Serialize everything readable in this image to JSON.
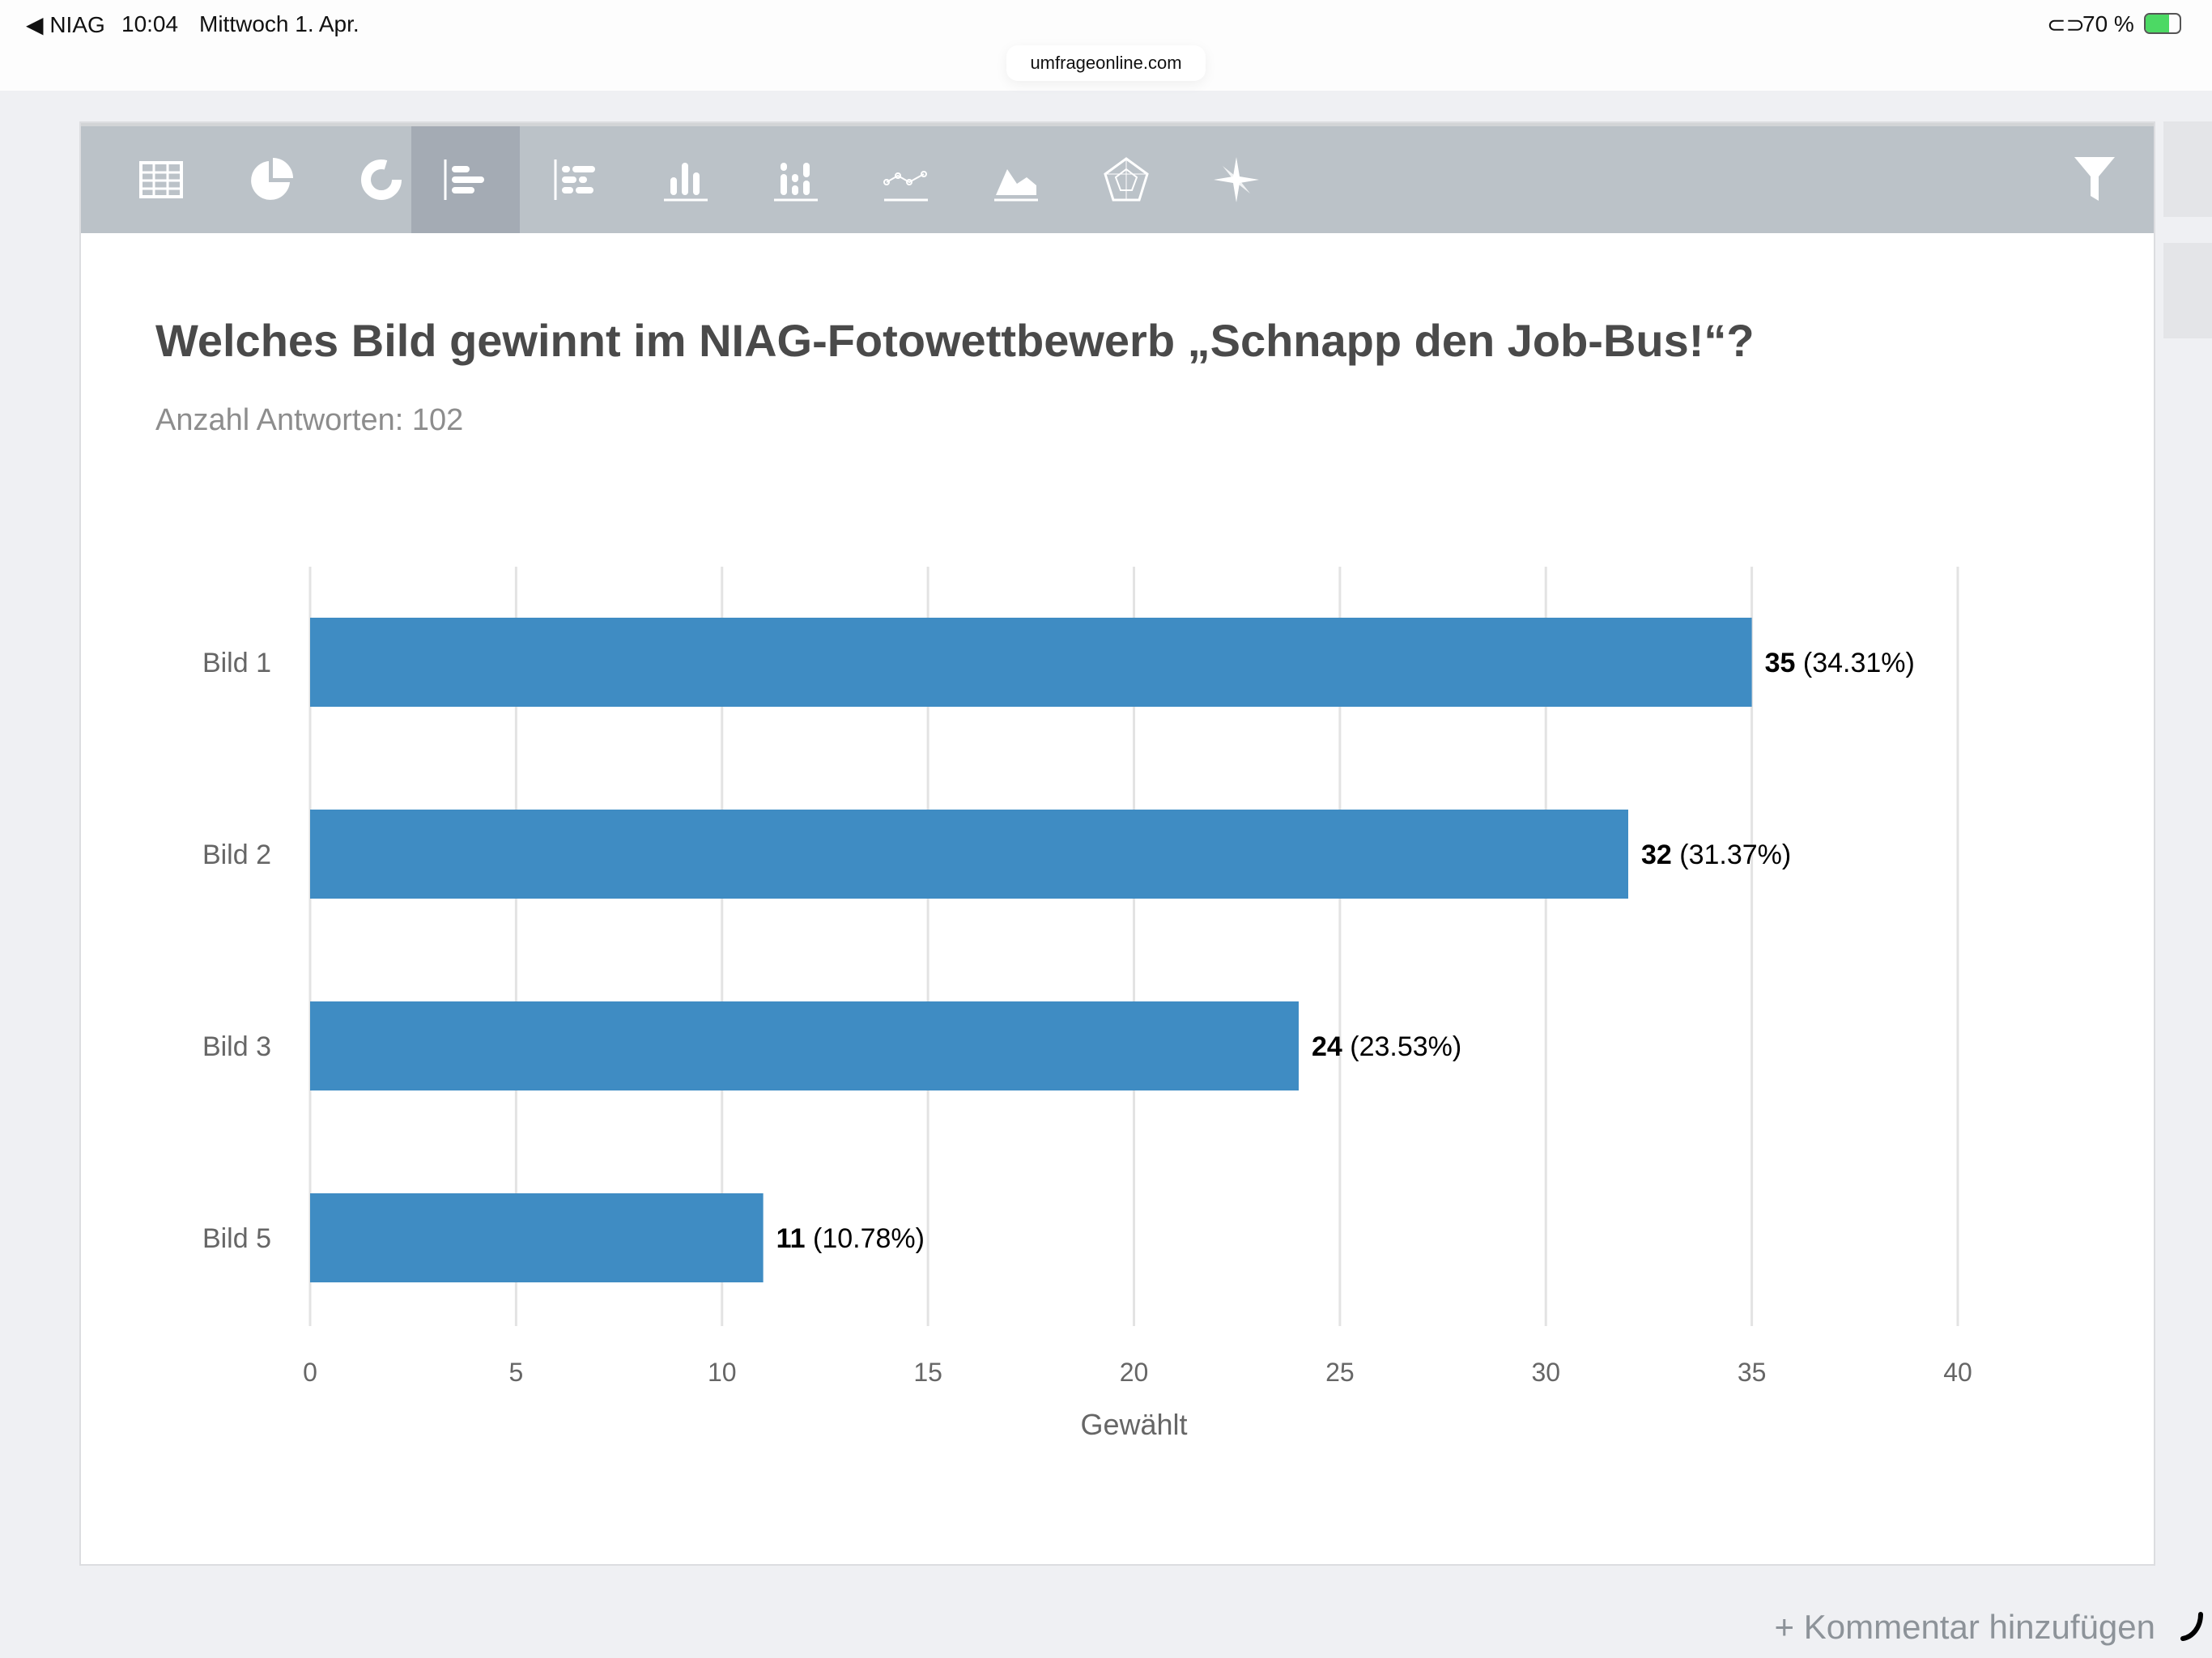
{
  "status_bar": {
    "back_app": "NIAG",
    "time": "10:04",
    "date": "Mittwoch 1. Apr.",
    "battery": "70 %"
  },
  "browser": {
    "url": "umfrageonline.com"
  },
  "toolbar": {
    "icons": [
      "table-icon",
      "pie-chart-icon",
      "donut-chart-icon",
      "horizontal-bar-icon",
      "stacked-horizontal-bar-icon",
      "vertical-bar-icon",
      "stacked-vertical-bar-icon",
      "line-chart-icon",
      "area-chart-icon",
      "radar-chart-icon",
      "compass-rose-icon"
    ],
    "active_index": 3,
    "filter_icon": "filter-icon"
  },
  "question": {
    "title": "Welches Bild gewinnt im NIAG-Fotowettbewerb „Schnapp den Job-Bus!“?",
    "subtitle": "Anzahl Antworten: 102"
  },
  "chart_data": {
    "type": "bar",
    "orientation": "horizontal",
    "categories": [
      "Bild 1",
      "Bild 2",
      "Bild 3",
      "Bild 5"
    ],
    "values": [
      35,
      32,
      24,
      11
    ],
    "percent_labels": [
      "(34.31%)",
      "(31.37%)",
      "(23.53%)",
      "(10.78%)"
    ],
    "xlabel": "Gewählt",
    "xlim": [
      0,
      40
    ],
    "xticks": [
      0,
      5,
      10,
      15,
      20,
      25,
      30,
      35,
      40
    ],
    "grid": true,
    "color": "#3f8cc3"
  },
  "footer": {
    "add_comment": "+ Kommentar hinzufügen"
  }
}
